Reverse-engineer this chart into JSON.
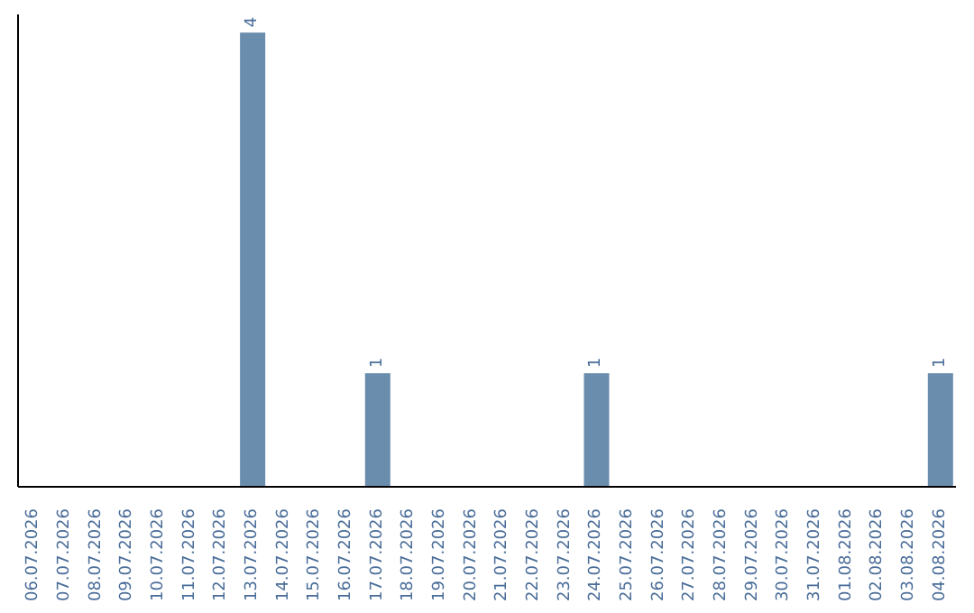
{
  "chart_data": {
    "type": "bar",
    "categories": [
      "06.07.2026",
      "07.07.2026",
      "08.07.2026",
      "09.07.2026",
      "10.07.2026",
      "11.07.2026",
      "12.07.2026",
      "13.07.2026",
      "14.07.2026",
      "15.07.2026",
      "16.07.2026",
      "17.07.2026",
      "18.07.2026",
      "19.07.2026",
      "20.07.2026",
      "21.07.2026",
      "22.07.2026",
      "23.07.2026",
      "24.07.2026",
      "25.07.2026",
      "26.07.2026",
      "27.07.2026",
      "28.07.2026",
      "29.07.2026",
      "30.07.2026",
      "31.07.2026",
      "01.08.2026",
      "02.08.2026",
      "03.08.2026",
      "04.08.2026"
    ],
    "values": [
      0,
      0,
      0,
      0,
      0,
      0,
      0,
      4,
      0,
      0,
      0,
      1,
      0,
      0,
      0,
      0,
      0,
      0,
      1,
      0,
      0,
      0,
      0,
      0,
      0,
      0,
      0,
      0,
      0,
      1
    ],
    "value_labels": [
      null,
      null,
      null,
      null,
      null,
      null,
      null,
      "4",
      null,
      null,
      null,
      "1",
      null,
      null,
      null,
      null,
      null,
      null,
      "1",
      null,
      null,
      null,
      null,
      null,
      null,
      null,
      null,
      null,
      null,
      "1"
    ],
    "color": "#6a8cad",
    "tick_labels": "x"
  }
}
